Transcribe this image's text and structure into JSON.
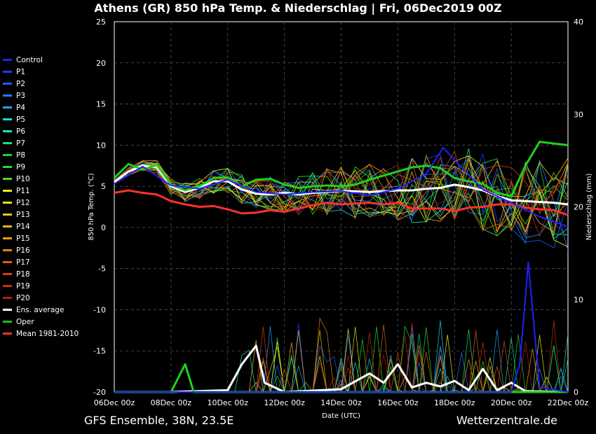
{
  "title": "Athens  (GR)  850 hPa Temp. & Niederschlag | Fri, 06Dec2019 00Z",
  "footer": {
    "left": "GFS Ensemble, 38N, 23.5E",
    "right": "Wetterzentrale.de"
  },
  "chart_data": {
    "type": "line",
    "xlabel": "Date (UTC)",
    "ylabel": "850 hPa Temp. (°C)",
    "y2label": "Niederschlag (mm)",
    "x_ticks": [
      "06Dec 00z",
      "08Dec 00z",
      "10Dec 00z",
      "12Dec 00z",
      "14Dec 00z",
      "16Dec 00z",
      "18Dec 00z",
      "20Dec 00z",
      "22Dec 00z"
    ],
    "x_range": [
      "06Dec 00z",
      "22Dec 00z"
    ],
    "ylim": [
      -20,
      25
    ],
    "y_ticks": [
      25,
      20,
      15,
      10,
      5,
      0,
      -5,
      -10,
      -15,
      -20
    ],
    "y2lim": [
      0,
      40
    ],
    "y2_ticks": [
      40,
      30,
      20,
      10,
      0
    ],
    "grid": true,
    "legend_position": "left",
    "legend": [
      {
        "name": "Control",
        "color": "#2020ff"
      },
      {
        "name": "P1",
        "color": "#1a3cff"
      },
      {
        "name": "P2",
        "color": "#1e5cff"
      },
      {
        "name": "P3",
        "color": "#1e7fff"
      },
      {
        "name": "P4",
        "color": "#19a6ff"
      },
      {
        "name": "P5",
        "color": "#18d8e8"
      },
      {
        "name": "P6",
        "color": "#18e8b0"
      },
      {
        "name": "P7",
        "color": "#18e080"
      },
      {
        "name": "P8",
        "color": "#18d040"
      },
      {
        "name": "P9",
        "color": "#20e020"
      },
      {
        "name": "P10",
        "color": "#40e020"
      },
      {
        "name": "P11",
        "color": "#f0f020"
      },
      {
        "name": "P12",
        "color": "#f0e020"
      },
      {
        "name": "P13",
        "color": "#f0c020"
      },
      {
        "name": "P14",
        "color": "#f0b010"
      },
      {
        "name": "P15",
        "color": "#f0a000"
      },
      {
        "name": "P16",
        "color": "#e88010"
      },
      {
        "name": "P17",
        "color": "#e06010"
      },
      {
        "name": "P18",
        "color": "#d84010"
      },
      {
        "name": "P19",
        "color": "#c83010"
      },
      {
        "name": "P20",
        "color": "#b02010"
      },
      {
        "name": "Ens. average",
        "color": "#ffffff"
      },
      {
        "name": "Oper",
        "color": "#20c020"
      },
      {
        "name": "Mean 1981-2010",
        "color": "#ff3030"
      }
    ],
    "series": [
      {
        "name": "Ens. average",
        "kind": "temp",
        "values": [
          [
            0,
            5.5
          ],
          [
            0.5,
            6.8
          ],
          [
            1,
            7.5
          ],
          [
            1.5,
            7.3
          ],
          [
            2,
            5
          ],
          [
            2.5,
            4.3
          ],
          [
            3,
            4.8
          ],
          [
            3.5,
            5.6
          ],
          [
            4,
            5.6
          ],
          [
            4.5,
            4.6
          ],
          [
            5,
            4.1
          ],
          [
            5.5,
            4.0
          ],
          [
            6,
            4.2
          ],
          [
            6.5,
            4.0
          ],
          [
            7,
            4.2
          ],
          [
            7.5,
            4.3
          ],
          [
            8,
            4.4
          ],
          [
            8.5,
            4.4
          ],
          [
            9,
            4.3
          ],
          [
            9.5,
            4.4
          ],
          [
            10,
            4.5
          ],
          [
            10.5,
            4.5
          ],
          [
            11,
            4.7
          ],
          [
            11.5,
            4.8
          ],
          [
            12,
            5.2
          ],
          [
            12.5,
            4.9
          ],
          [
            13,
            4.5
          ],
          [
            13.5,
            3.8
          ],
          [
            14,
            3.3
          ],
          [
            14.5,
            3.2
          ],
          [
            15,
            3.1
          ],
          [
            15.5,
            3
          ],
          [
            16,
            2.8
          ]
        ]
      },
      {
        "name": "Mean 1981-2010",
        "kind": "temp",
        "values": [
          [
            0,
            4.2
          ],
          [
            0.5,
            4.5
          ],
          [
            1,
            4.2
          ],
          [
            1.5,
            4
          ],
          [
            2,
            3.2
          ],
          [
            2.5,
            2.8
          ],
          [
            3,
            2.5
          ],
          [
            3.5,
            2.6
          ],
          [
            4,
            2.2
          ],
          [
            4.5,
            1.7
          ],
          [
            5,
            1.8
          ],
          [
            5.5,
            2.1
          ],
          [
            6,
            1.9
          ],
          [
            6.5,
            2.3
          ],
          [
            7,
            2.7
          ],
          [
            7.5,
            3
          ],
          [
            8,
            2.8
          ],
          [
            8.5,
            2.9
          ],
          [
            9,
            3
          ],
          [
            9.5,
            2.8
          ],
          [
            10,
            3
          ],
          [
            10.5,
            2.3
          ],
          [
            11,
            2.3
          ],
          [
            11.5,
            2.3
          ],
          [
            12,
            2
          ],
          [
            12.5,
            2.4
          ],
          [
            13,
            2.5
          ],
          [
            13.5,
            2.8
          ],
          [
            14,
            2.8
          ],
          [
            14.5,
            2.4
          ],
          [
            15,
            2.2
          ],
          [
            15.5,
            2.1
          ],
          [
            16,
            1.5
          ]
        ]
      },
      {
        "name": "Oper",
        "kind": "temp",
        "values": [
          [
            0,
            6
          ],
          [
            0.5,
            7.7
          ],
          [
            1,
            7
          ],
          [
            1.5,
            7.6
          ],
          [
            2,
            5.2
          ],
          [
            2.5,
            4.5
          ],
          [
            3,
            5
          ],
          [
            3.5,
            6
          ],
          [
            4,
            6.1
          ],
          [
            4.5,
            5
          ],
          [
            5,
            5.8
          ],
          [
            5.5,
            5.9
          ],
          [
            6,
            5.2
          ],
          [
            6.5,
            4.8
          ],
          [
            7,
            5
          ],
          [
            7.5,
            5.1
          ],
          [
            8,
            5
          ],
          [
            8.5,
            5.2
          ],
          [
            9,
            5.8
          ],
          [
            9.5,
            6.3
          ],
          [
            10,
            6.8
          ],
          [
            10.5,
            7.3
          ],
          [
            11,
            7.5
          ],
          [
            11.5,
            7.2
          ],
          [
            12,
            6
          ],
          [
            12.5,
            5.6
          ],
          [
            13,
            5.3
          ],
          [
            13.5,
            4.2
          ],
          [
            14,
            3.8
          ],
          [
            14.5,
            7.5
          ],
          [
            15,
            10.4
          ],
          [
            15.5,
            10.2
          ],
          [
            16,
            10
          ]
        ]
      },
      {
        "name": "Control",
        "kind": "temp",
        "values": [
          [
            0,
            5.3
          ],
          [
            1,
            7.4
          ],
          [
            2,
            5.1
          ],
          [
            3,
            4.7
          ],
          [
            4,
            5.8
          ],
          [
            5,
            4.3
          ],
          [
            6,
            4.0
          ],
          [
            7,
            4.3
          ],
          [
            8,
            4.4
          ],
          [
            9,
            3.9
          ],
          [
            10,
            4.7
          ],
          [
            11,
            6.5
          ],
          [
            11.6,
            9.7
          ],
          [
            12,
            8.2
          ],
          [
            13,
            4.6
          ],
          [
            14,
            3.0
          ],
          [
            15,
            1.3
          ],
          [
            16,
            0.1
          ]
        ]
      },
      {
        "name": "Ens. average",
        "kind": "precip",
        "values": [
          [
            0,
            0
          ],
          [
            2,
            0
          ],
          [
            4,
            0.2
          ],
          [
            4.5,
            3
          ],
          [
            5,
            5
          ],
          [
            5.3,
            1
          ],
          [
            6,
            0
          ],
          [
            8,
            0.3
          ],
          [
            9,
            2
          ],
          [
            9.5,
            1
          ],
          [
            10,
            3
          ],
          [
            10.5,
            0.5
          ],
          [
            11,
            1
          ],
          [
            11.5,
            0.6
          ],
          [
            12,
            1.2
          ],
          [
            12.5,
            0.2
          ],
          [
            13,
            2.5
          ],
          [
            13.5,
            0.2
          ],
          [
            14,
            1
          ],
          [
            14.5,
            0.1
          ],
          [
            16,
            0
          ]
        ]
      },
      {
        "name": "Oper",
        "kind": "precip",
        "values": [
          [
            0,
            0
          ],
          [
            2,
            0
          ],
          [
            2.5,
            3
          ],
          [
            2.8,
            0
          ],
          [
            4,
            0
          ],
          [
            16,
            0
          ]
        ]
      },
      {
        "name": "Control",
        "kind": "precip",
        "values": [
          [
            0,
            0
          ],
          [
            12,
            0
          ],
          [
            14,
            0
          ],
          [
            14.3,
            3
          ],
          [
            14.6,
            14
          ],
          [
            15,
            0.5
          ],
          [
            16,
            0
          ]
        ]
      }
    ]
  }
}
